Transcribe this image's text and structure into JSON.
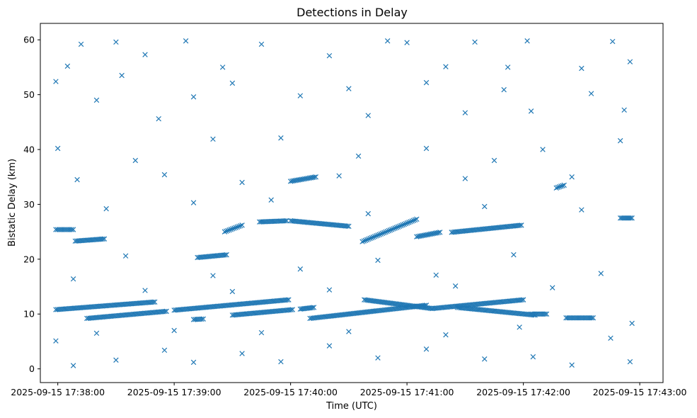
{
  "chart_data": {
    "type": "scatter",
    "title": "Detections in Delay",
    "xlabel": "Time (UTC)",
    "ylabel": "Bistatic Delay (km)",
    "x_tick_labels": [
      "2025-09-15 17:38:00",
      "2025-09-15 17:39:00",
      "2025-09-15 17:40:00",
      "2025-09-15 17:41:00",
      "2025-09-15 17:42:00",
      "2025-09-15 17:43:00"
    ],
    "y_ticks": [
      0,
      10,
      20,
      30,
      40,
      50,
      60
    ],
    "xlim": [
      "2025-09-15 17:37:51",
      "2025-09-15 17:43:12"
    ],
    "ylim": [
      -2.5,
      63
    ],
    "grid": false,
    "marker": "x",
    "color": "#1f77b4",
    "series": [
      {
        "tracks": [
          {
            "start": [
              "2025-09-15 17:37:59",
              25.4
            ],
            "end": [
              "2025-09-15 17:38:08",
              25.4
            ]
          },
          {
            "start": [
              "2025-09-15 17:38:09",
              23.3
            ],
            "end": [
              "2025-09-15 17:38:24",
              23.7
            ]
          },
          {
            "start": [
              "2025-09-15 17:39:12",
              20.3
            ],
            "end": [
              "2025-09-15 17:39:27",
              20.8
            ]
          },
          {
            "start": [
              "2025-09-15 17:39:26",
              25.0
            ],
            "end": [
              "2025-09-15 17:39:35",
              26.2
            ]
          },
          {
            "start": [
              "2025-09-15 17:39:44",
              26.8
            ],
            "end": [
              "2025-09-15 17:39:58",
              27.0
            ]
          },
          {
            "start": [
              "2025-09-15 17:40:00",
              34.2
            ],
            "end": [
              "2025-09-15 17:40:13",
              35.0
            ]
          },
          {
            "start": [
              "2025-09-15 17:40:00",
              27.0
            ],
            "end": [
              "2025-09-15 17:40:30",
              26.0
            ]
          },
          {
            "start": [
              "2025-09-15 17:40:37",
              23.2
            ],
            "end": [
              "2025-09-15 17:41:05",
              27.3
            ]
          },
          {
            "start": [
              "2025-09-15 17:41:05",
              24.1
            ],
            "end": [
              "2025-09-15 17:41:17",
              24.9
            ]
          },
          {
            "start": [
              "2025-09-15 17:41:23",
              24.9
            ],
            "end": [
              "2025-09-15 17:41:59",
              26.2
            ]
          },
          {
            "start": [
              "2025-09-15 17:42:17",
              33.0
            ],
            "end": [
              "2025-09-15 17:42:21",
              33.5
            ]
          },
          {
            "start": [
              "2025-09-15 17:42:50",
              27.5
            ],
            "end": [
              "2025-09-15 17:42:56",
              27.5
            ]
          },
          {
            "start": [
              "2025-09-15 17:37:59",
              10.8
            ],
            "end": [
              "2025-09-15 17:38:50",
              12.2
            ]
          },
          {
            "start": [
              "2025-09-15 17:38:15",
              9.2
            ],
            "end": [
              "2025-09-15 17:38:56",
              10.5
            ]
          },
          {
            "start": [
              "2025-09-15 17:39:00",
              10.7
            ],
            "end": [
              "2025-09-15 17:39:59",
              12.6
            ]
          },
          {
            "start": [
              "2025-09-15 17:39:10",
              9.0
            ],
            "end": [
              "2025-09-15 17:39:15",
              9.1
            ]
          },
          {
            "start": [
              "2025-09-15 17:39:30",
              9.8
            ],
            "end": [
              "2025-09-15 17:40:01",
              10.8
            ]
          },
          {
            "start": [
              "2025-09-15 17:40:05",
              10.9
            ],
            "end": [
              "2025-09-15 17:40:12",
              11.2
            ]
          },
          {
            "start": [
              "2025-09-15 17:40:10",
              9.2
            ],
            "end": [
              "2025-09-15 17:41:10",
              11.6
            ]
          },
          {
            "start": [
              "2025-09-15 17:40:38",
              12.6
            ],
            "end": [
              "2025-09-15 17:41:13",
              11.0
            ]
          },
          {
            "start": [
              "2025-09-15 17:41:13",
              11.0
            ],
            "end": [
              "2025-09-15 17:42:00",
              12.6
            ]
          },
          {
            "start": [
              "2025-09-15 17:41:26",
              11.2
            ],
            "end": [
              "2025-09-15 17:42:06",
              9.8
            ]
          },
          {
            "start": [
              "2025-09-15 17:42:04",
              10.0
            ],
            "end": [
              "2025-09-15 17:42:12",
              10.0
            ]
          },
          {
            "start": [
              "2025-09-15 17:42:22",
              9.3
            ],
            "end": [
              "2025-09-15 17:42:36",
              9.3
            ]
          }
        ],
        "scattered_points": [
          [
            "2025-09-15 17:38:12",
            59.2
          ],
          [
            "2025-09-15 17:38:30",
            59.6
          ],
          [
            "2025-09-15 17:39:06",
            59.8
          ],
          [
            "2025-09-15 17:39:45",
            59.2
          ],
          [
            "2025-09-15 17:40:50",
            59.8
          ],
          [
            "2025-09-15 17:41:00",
            59.5
          ],
          [
            "2025-09-15 17:41:35",
            59.6
          ],
          [
            "2025-09-15 17:42:02",
            59.8
          ],
          [
            "2025-09-15 17:42:46",
            59.7
          ],
          [
            "2025-09-15 17:38:05",
            55.2
          ],
          [
            "2025-09-15 17:38:45",
            57.3
          ],
          [
            "2025-09-15 17:39:25",
            55.0
          ],
          [
            "2025-09-15 17:40:20",
            57.1
          ],
          [
            "2025-09-15 17:41:20",
            55.1
          ],
          [
            "2025-09-15 17:41:52",
            55.0
          ],
          [
            "2025-09-15 17:42:30",
            54.8
          ],
          [
            "2025-09-15 17:42:55",
            56.0
          ],
          [
            "2025-09-15 17:37:59",
            52.4
          ],
          [
            "2025-09-15 17:38:33",
            53.5
          ],
          [
            "2025-09-15 17:39:30",
            52.1
          ],
          [
            "2025-09-15 17:40:30",
            51.1
          ],
          [
            "2025-09-15 17:41:10",
            52.2
          ],
          [
            "2025-09-15 17:41:50",
            50.9
          ],
          [
            "2025-09-15 17:42:35",
            50.2
          ],
          [
            "2025-09-15 17:38:20",
            49.0
          ],
          [
            "2025-09-15 17:38:52",
            45.6
          ],
          [
            "2025-09-15 17:39:10",
            49.6
          ],
          [
            "2025-09-15 17:40:05",
            49.8
          ],
          [
            "2025-09-15 17:40:40",
            46.2
          ],
          [
            "2025-09-15 17:41:30",
            46.7
          ],
          [
            "2025-09-15 17:42:04",
            47.0
          ],
          [
            "2025-09-15 17:42:52",
            47.2
          ],
          [
            "2025-09-15 17:38:00",
            40.2
          ],
          [
            "2025-09-15 17:38:40",
            38.0
          ],
          [
            "2025-09-15 17:39:20",
            41.9
          ],
          [
            "2025-09-15 17:39:55",
            42.1
          ],
          [
            "2025-09-15 17:40:35",
            38.8
          ],
          [
            "2025-09-15 17:41:10",
            40.2
          ],
          [
            "2025-09-15 17:41:45",
            38.0
          ],
          [
            "2025-09-15 17:42:10",
            40.0
          ],
          [
            "2025-09-15 17:42:50",
            41.6
          ],
          [
            "2025-09-15 17:38:10",
            34.5
          ],
          [
            "2025-09-15 17:38:55",
            35.4
          ],
          [
            "2025-09-15 17:39:35",
            34.0
          ],
          [
            "2025-09-15 17:40:25",
            35.2
          ],
          [
            "2025-09-15 17:41:30",
            34.7
          ],
          [
            "2025-09-15 17:42:25",
            35.0
          ],
          [
            "2025-09-15 17:38:25",
            29.2
          ],
          [
            "2025-09-15 17:39:10",
            30.3
          ],
          [
            "2025-09-15 17:39:50",
            30.8
          ],
          [
            "2025-09-15 17:40:40",
            28.3
          ],
          [
            "2025-09-15 17:41:40",
            29.6
          ],
          [
            "2025-09-15 17:42:30",
            29.0
          ],
          [
            "2025-09-15 17:38:35",
            20.6
          ],
          [
            "2025-09-15 17:39:20",
            17.0
          ],
          [
            "2025-09-15 17:40:05",
            18.2
          ],
          [
            "2025-09-15 17:40:45",
            19.8
          ],
          [
            "2025-09-15 17:41:15",
            17.1
          ],
          [
            "2025-09-15 17:41:55",
            20.8
          ],
          [
            "2025-09-15 17:42:40",
            17.4
          ],
          [
            "2025-09-15 17:38:08",
            16.4
          ],
          [
            "2025-09-15 17:38:45",
            14.3
          ],
          [
            "2025-09-15 17:39:30",
            14.1
          ],
          [
            "2025-09-15 17:40:20",
            14.4
          ],
          [
            "2025-09-15 17:41:25",
            15.1
          ],
          [
            "2025-09-15 17:42:15",
            14.8
          ],
          [
            "2025-09-15 17:37:59",
            5.1
          ],
          [
            "2025-09-15 17:38:08",
            0.6
          ],
          [
            "2025-09-15 17:38:30",
            1.6
          ],
          [
            "2025-09-15 17:38:55",
            3.4
          ],
          [
            "2025-09-15 17:39:10",
            1.2
          ],
          [
            "2025-09-15 17:39:35",
            2.8
          ],
          [
            "2025-09-15 17:39:55",
            1.3
          ],
          [
            "2025-09-15 17:40:20",
            4.2
          ],
          [
            "2025-09-15 17:40:45",
            2.0
          ],
          [
            "2025-09-15 17:41:10",
            3.6
          ],
          [
            "2025-09-15 17:41:40",
            1.8
          ],
          [
            "2025-09-15 17:42:05",
            2.2
          ],
          [
            "2025-09-15 17:42:25",
            0.7
          ],
          [
            "2025-09-15 17:42:55",
            1.3
          ],
          [
            "2025-09-15 17:38:20",
            6.5
          ],
          [
            "2025-09-15 17:39:00",
            7.0
          ],
          [
            "2025-09-15 17:39:45",
            6.6
          ],
          [
            "2025-09-15 17:40:30",
            6.8
          ],
          [
            "2025-09-15 17:41:20",
            6.2
          ],
          [
            "2025-09-15 17:41:58",
            7.6
          ],
          [
            "2025-09-15 17:42:45",
            5.6
          ],
          [
            "2025-09-15 17:42:56",
            8.3
          ]
        ]
      }
    ]
  }
}
